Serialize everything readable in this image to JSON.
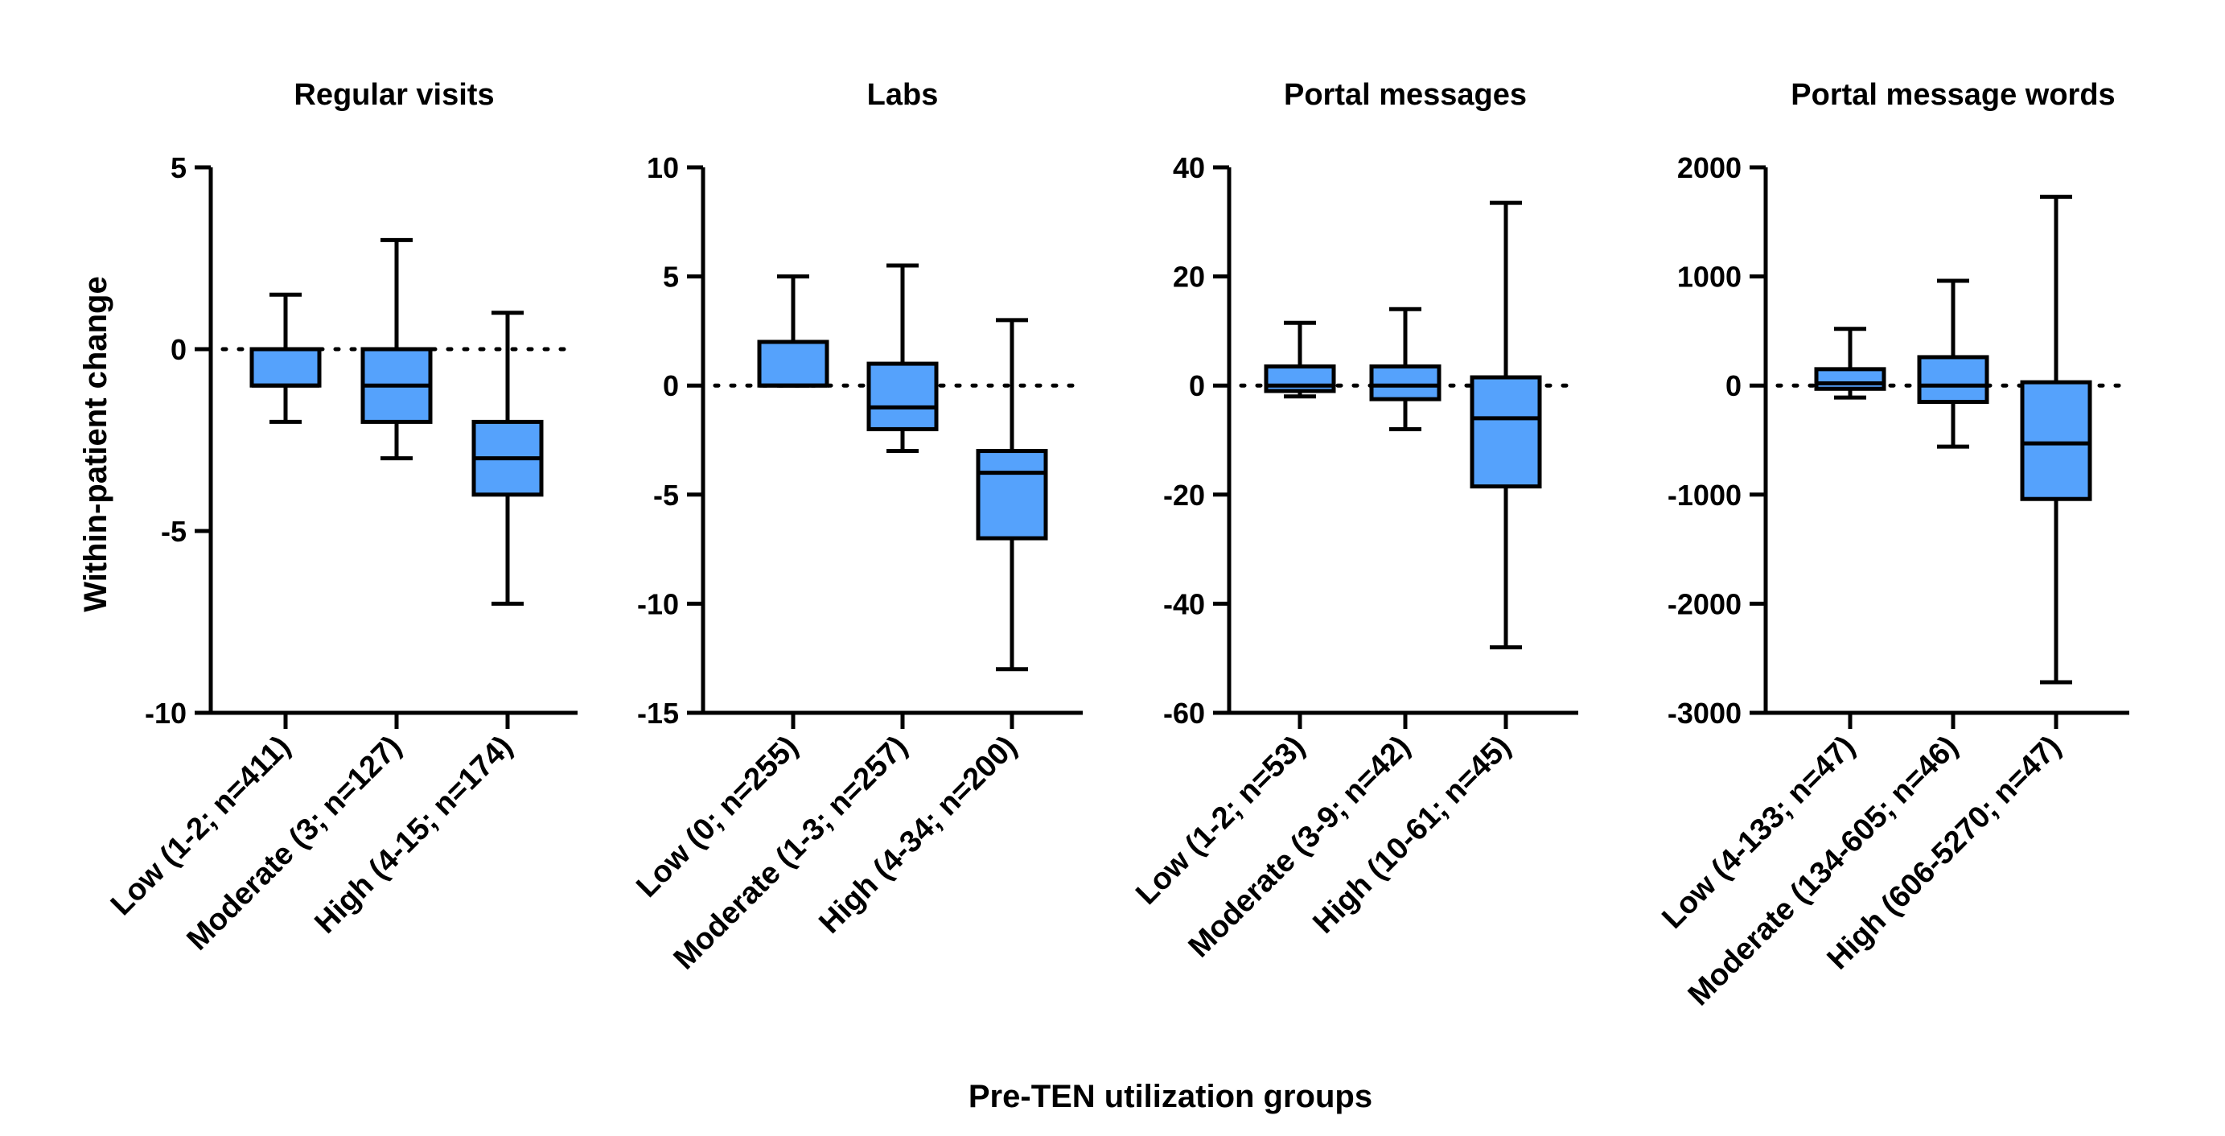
{
  "figure": {
    "y_axis_title": "Within-patient change",
    "x_axis_title": "Pre-TEN utilization groups",
    "box_color": "#55a2fc",
    "line_color": "#000000"
  },
  "chart_data": [
    {
      "type": "box",
      "title": "Regular visits",
      "ylim": [
        -10,
        5
      ],
      "yticks": [
        5,
        0,
        -5,
        -10
      ],
      "categories": [
        "Low (1-2; n=411)",
        "Moderate (3; n=127)",
        "High (4-15; n=174)"
      ],
      "boxes": [
        {
          "whisker_low": -2,
          "q1": -1,
          "median": -1,
          "q3": 0,
          "whisker_high": 1.5
        },
        {
          "whisker_low": -3,
          "q1": -2,
          "median": -1,
          "q3": 0,
          "whisker_high": 3
        },
        {
          "whisker_low": -7,
          "q1": -4,
          "median": -3,
          "q3": -2,
          "whisker_high": 1
        }
      ],
      "reference_line": 0
    },
    {
      "type": "box",
      "title": "Labs",
      "ylim": [
        -15,
        10
      ],
      "yticks": [
        10,
        5,
        0,
        -5,
        -10,
        -15
      ],
      "categories": [
        "Low (0; n=255)",
        "Moderate (1-3; n=257)",
        "High (4-34; n=200)"
      ],
      "boxes": [
        {
          "whisker_low": 0,
          "q1": 0,
          "median": 0,
          "q3": 2,
          "whisker_high": 5
        },
        {
          "whisker_low": -3,
          "q1": -2,
          "median": -1,
          "q3": 1,
          "whisker_high": 5.5
        },
        {
          "whisker_low": -13,
          "q1": -7,
          "median": -4,
          "q3": -3,
          "whisker_high": 3
        }
      ],
      "reference_line": 0
    },
    {
      "type": "box",
      "title": "Portal messages",
      "ylim": [
        -60,
        40
      ],
      "yticks": [
        40,
        20,
        0,
        -20,
        -40,
        -60
      ],
      "categories": [
        "Low (1-2; n=53)",
        "Moderate (3-9; n=42)",
        "High (10-61; n=45)"
      ],
      "boxes": [
        {
          "whisker_low": -2,
          "q1": -1,
          "median": 0,
          "q3": 3.5,
          "whisker_high": 11.5
        },
        {
          "whisker_low": -8,
          "q1": -2.5,
          "median": 0,
          "q3": 3.5,
          "whisker_high": 14
        },
        {
          "whisker_low": -48,
          "q1": -18.5,
          "median": -6,
          "q3": 1.5,
          "whisker_high": 33.5
        }
      ],
      "reference_line": 0
    },
    {
      "type": "box",
      "title": "Portal message words",
      "ylim": [
        -3000,
        2000
      ],
      "yticks": [
        2000,
        1000,
        0,
        -1000,
        -2000,
        -3000
      ],
      "categories": [
        "Low (4-133; n=47)",
        "Moderate (134-605; n=46)",
        "High (606-5270; n=47)"
      ],
      "boxes": [
        {
          "whisker_low": -110,
          "q1": -30,
          "median": 20,
          "q3": 150,
          "whisker_high": 520
        },
        {
          "whisker_low": -560,
          "q1": -150,
          "median": 0,
          "q3": 260,
          "whisker_high": 960
        },
        {
          "whisker_low": -2720,
          "q1": -1040,
          "median": -530,
          "q3": 30,
          "whisker_high": 1730
        }
      ],
      "reference_line": 0
    }
  ]
}
